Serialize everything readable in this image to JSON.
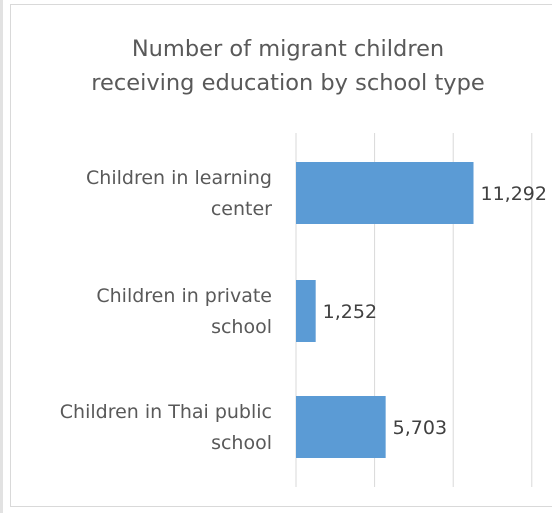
{
  "chart_data": {
    "type": "bar",
    "orientation": "horizontal",
    "title_lines": [
      "Number of migrant children",
      "receiving education by school type"
    ],
    "categories": [
      [
        "Children in learning",
        "center"
      ],
      [
        "Children in private",
        "school"
      ],
      [
        "Children in Thai public",
        "school"
      ]
    ],
    "values": [
      11292,
      1252,
      5703
    ],
    "data_labels": [
      "11,292",
      "1,252",
      "5,703"
    ],
    "xlim": [
      0,
      16000
    ],
    "grid": true,
    "legend": "none",
    "bar_color": "#5b9bd5"
  }
}
